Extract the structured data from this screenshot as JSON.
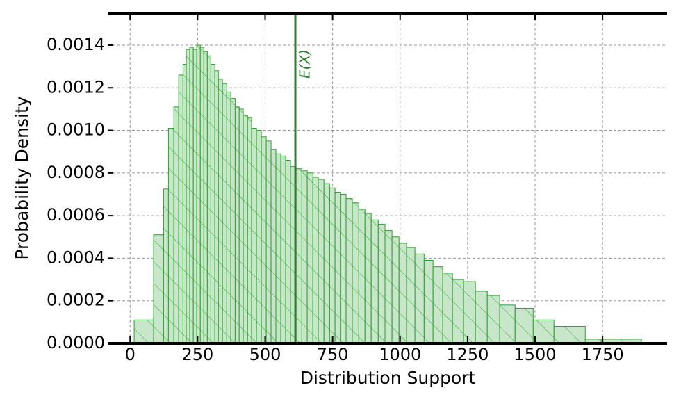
{
  "chart_data": {
    "type": "histogram",
    "xlabel": "Distribution Support",
    "ylabel": "Probability Density",
    "bins": [
      15,
      87,
      124,
      142,
      162,
      180,
      196,
      208,
      221,
      234,
      247,
      260,
      273,
      286,
      299,
      314,
      327,
      342,
      358,
      373,
      389,
      404,
      419,
      435,
      450,
      468,
      486,
      504,
      522,
      540,
      558,
      576,
      594,
      615,
      636,
      656,
      677,
      697,
      718,
      739,
      759,
      780,
      800,
      823,
      847,
      870,
      893,
      919,
      944,
      970,
      996,
      1024,
      1055,
      1089,
      1122,
      1158,
      1194,
      1235,
      1279,
      1323,
      1369,
      1426,
      1493,
      1570,
      1686,
      1745,
      1894
    ],
    "values": [
      0.00011,
      0.00051,
      0.000725,
      0.00101,
      0.00111,
      0.00126,
      0.00131,
      0.00138,
      0.00139,
      0.00138,
      0.0014,
      0.00139,
      0.00137,
      0.00135,
      0.00131,
      0.00128,
      0.00124,
      0.00122,
      0.00118,
      0.00115,
      0.00111,
      0.0011,
      0.00107,
      0.00106,
      0.00101,
      0.001,
      0.00097,
      0.00095,
      0.00091,
      0.00089,
      0.00088,
      0.00086,
      0.00083,
      0.00082,
      0.00081,
      0.0008,
      0.00078,
      0.00077,
      0.00075,
      0.00073,
      0.00071,
      0.0007,
      0.00068,
      0.00066,
      0.00063,
      0.00061,
      0.00058,
      0.00056,
      0.00053,
      0.0005,
      0.00047,
      0.00045,
      0.00042,
      0.00039,
      0.00036,
      0.00033,
      0.0003,
      0.00029,
      0.000245,
      0.000225,
      0.00018,
      0.000165,
      0.00011,
      8e-05,
      2e-05,
      2e-05
    ],
    "color": "#c8e6c9",
    "edgecolor": "#2ca02c",
    "xlim": [
      -83,
      1989
    ],
    "ylim": [
      0,
      0.00155
    ],
    "xticks": [
      0,
      250,
      500,
      750,
      1000,
      1250,
      1500,
      1750
    ],
    "yticks": [
      {
        "value": 0,
        "label": "0.0000"
      },
      {
        "value": 0.0002,
        "label": "0.0002"
      },
      {
        "value": 0.0004,
        "label": "0.0004"
      },
      {
        "value": 0.0006,
        "label": "0.0006"
      },
      {
        "value": 0.0008,
        "label": "0.0008"
      },
      {
        "value": 0.001,
        "label": "0.0010"
      },
      {
        "value": 0.0012,
        "label": "0.0012"
      },
      {
        "value": 0.0014,
        "label": "0.0014"
      }
    ],
    "grid": true,
    "vline": {
      "x": 612,
      "label": "E(X)",
      "color": "#2e7d32"
    }
  }
}
